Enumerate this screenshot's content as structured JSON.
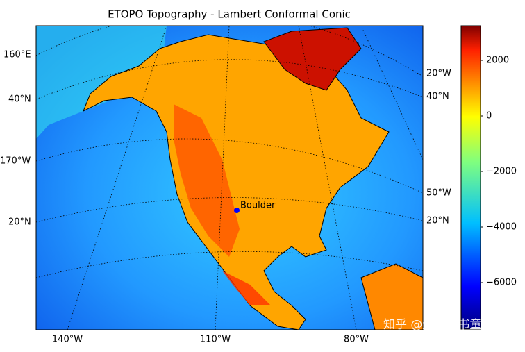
{
  "title": "ETOPO Topography - Lambert Conformal Conic",
  "map": {
    "edge_labels": {
      "left": [
        "160°E",
        "40°N",
        "170°W",
        "20°N"
      ],
      "right": [
        "20°W",
        "40°N",
        "50°W",
        "20°N"
      ],
      "bottom": [
        "140°W",
        "110°W",
        "80°W"
      ]
    },
    "marker_label": "Boulder"
  },
  "colorbar": {
    "lim": [
      -7675,
      3250
    ],
    "ticks": [
      {
        "value": 2000,
        "label": "2000"
      },
      {
        "value": 0,
        "label": "0"
      },
      {
        "value": -2000,
        "label": "−2000"
      },
      {
        "value": -4000,
        "label": "−4000"
      },
      {
        "value": -6000,
        "label": "−6000"
      }
    ]
  },
  "watermark": "知乎 @迷途小书童"
}
